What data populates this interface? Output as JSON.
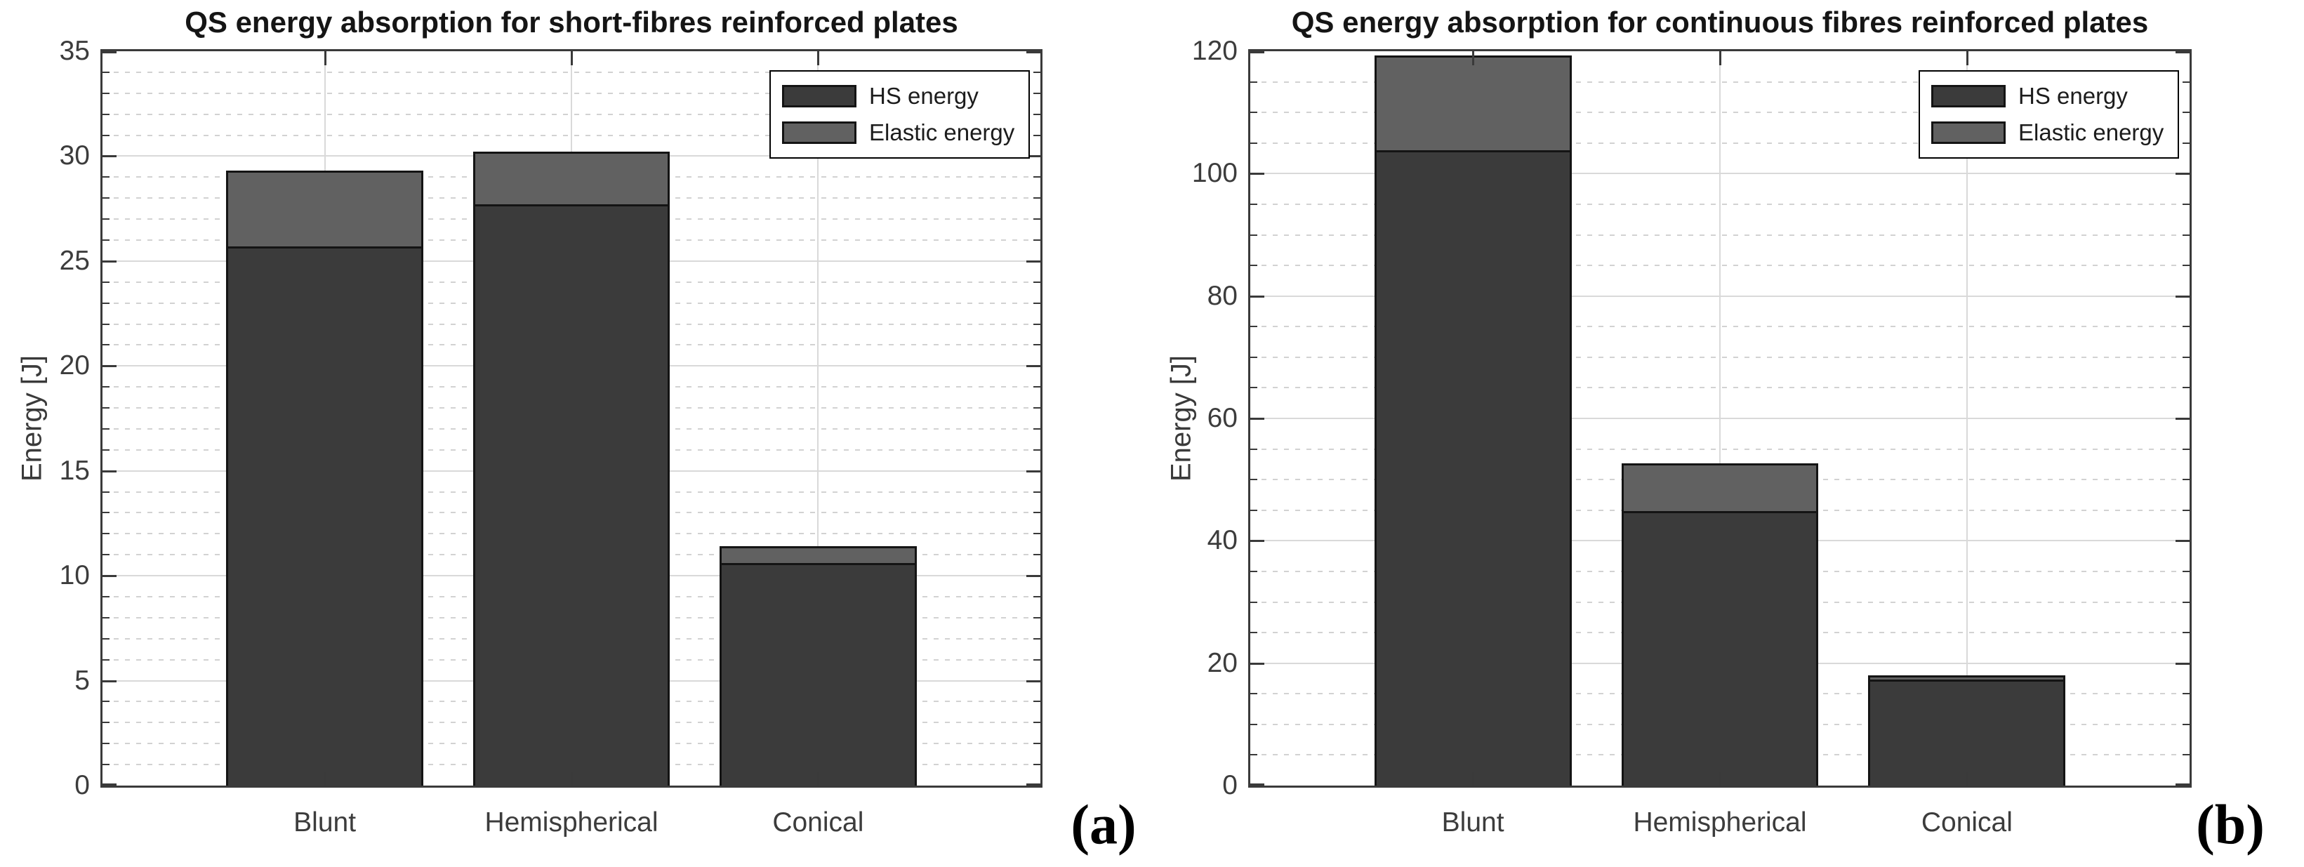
{
  "figure": {
    "background": "#ffffff",
    "description": "Two MATLAB-style stacked bar charts of quasi-static energy absorption"
  },
  "colors": {
    "hs_energy": "#3b3b3b",
    "elastic_energy": "#616161",
    "bar_edge": "#141414",
    "axis_box": "#3a3a3a",
    "grid_major": "#d9d9d9",
    "grid_minor": "#d2d2d2",
    "tick_text": "#3c3c3c"
  },
  "chart_data": [
    {
      "type": "bar",
      "stacked": true,
      "panel_label": "(a)",
      "title": "QS energy absorption for short-fibres reinforced plates",
      "xlabel": "",
      "ylabel": "Energy [J]",
      "categories": [
        "Blunt",
        "Hemispherical",
        "Conical"
      ],
      "series": [
        {
          "name": "HS energy",
          "color": "#3b3b3b",
          "values": [
            25.6,
            27.6,
            10.5
          ]
        },
        {
          "name": "Elastic energy",
          "color": "#616161",
          "values": [
            3.7,
            2.6,
            0.9
          ]
        }
      ],
      "totals": [
        29.3,
        30.2,
        11.4
      ],
      "ylim": [
        0,
        35
      ],
      "yticks": [
        0,
        5,
        10,
        15,
        20,
        25,
        30,
        35
      ],
      "yminor_step": 1,
      "grid": "horizontal major solid + minor dotted, vertical solid at category centers",
      "legend_position": "top-right inside plot"
    },
    {
      "type": "bar",
      "stacked": true,
      "panel_label": "(b)",
      "title": "QS energy absorption for continuous fibres reinforced plates",
      "xlabel": "",
      "ylabel": "Energy [J]",
      "categories": [
        "Blunt",
        "Hemispherical",
        "Conical"
      ],
      "series": [
        {
          "name": "HS energy",
          "color": "#3b3b3b",
          "values": [
            103.5,
            44.5,
            17.0
          ]
        },
        {
          "name": "Elastic energy",
          "color": "#616161",
          "values": [
            15.8,
            8.2,
            1.0
          ]
        }
      ],
      "totals": [
        119.3,
        52.7,
        18.0
      ],
      "ylim": [
        0,
        120
      ],
      "yticks": [
        0,
        20,
        40,
        60,
        80,
        100,
        120
      ],
      "yminor_step": 5,
      "grid": "horizontal major solid + minor dotted, vertical solid at category centers",
      "legend_position": "top-right inside plot"
    }
  ]
}
